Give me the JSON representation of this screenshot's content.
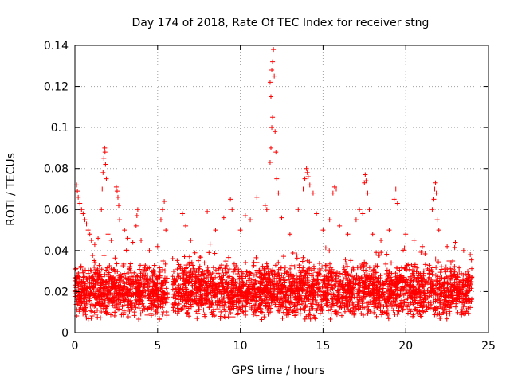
{
  "chart_data": {
    "type": "scatter",
    "title": "Day 174 of 2018, Rate Of TEC Index for receiver stng",
    "xlabel": "GPS time / hours",
    "ylabel": "ROTI / TECUs",
    "xlim": [
      0,
      25
    ],
    "ylim": [
      0,
      0.14
    ],
    "xticks": [
      0,
      5,
      10,
      15,
      20,
      25
    ],
    "yticks": [
      0,
      0.02,
      0.04,
      0.06,
      0.08,
      0.1,
      0.12,
      0.14
    ],
    "xtick_labels": [
      "0",
      "5",
      "10",
      "15",
      "20",
      "25"
    ],
    "ytick_labels": [
      "0",
      "0.02",
      "0.04",
      "0.06",
      "0.08",
      "0.1",
      "0.12",
      "0.14"
    ],
    "grid": true,
    "marker": "+",
    "color": "#ff0000",
    "data_gap_hours": [
      5.6,
      5.9
    ],
    "background_band": {
      "x_range": [
        0,
        24
      ],
      "y_range": [
        0.006,
        0.034
      ],
      "typical": 0.018
    },
    "series": [
      {
        "name": "ROTI",
        "points": [
          [
            0.1,
            0.072
          ],
          [
            0.15,
            0.069
          ],
          [
            0.2,
            0.066
          ],
          [
            0.3,
            0.063
          ],
          [
            0.4,
            0.06
          ],
          [
            0.5,
            0.058
          ],
          [
            0.6,
            0.055
          ],
          [
            0.7,
            0.053
          ],
          [
            0.8,
            0.05
          ],
          [
            0.9,
            0.048
          ],
          [
            1.0,
            0.045
          ],
          [
            1.2,
            0.043
          ],
          [
            1.4,
            0.046
          ],
          [
            1.6,
            0.06
          ],
          [
            1.65,
            0.07
          ],
          [
            1.7,
            0.078
          ],
          [
            1.75,
            0.085
          ],
          [
            1.8,
            0.09
          ],
          [
            1.82,
            0.088
          ],
          [
            1.85,
            0.082
          ],
          [
            1.9,
            0.075
          ],
          [
            2.0,
            0.048
          ],
          [
            2.2,
            0.045
          ],
          [
            2.5,
            0.071
          ],
          [
            2.55,
            0.069
          ],
          [
            2.6,
            0.066
          ],
          [
            2.65,
            0.062
          ],
          [
            2.7,
            0.055
          ],
          [
            3.0,
            0.05
          ],
          [
            3.2,
            0.046
          ],
          [
            3.5,
            0.044
          ],
          [
            3.7,
            0.052
          ],
          [
            3.75,
            0.057
          ],
          [
            3.8,
            0.06
          ],
          [
            4.0,
            0.045
          ],
          [
            4.5,
            0.04
          ],
          [
            5.0,
            0.042
          ],
          [
            5.2,
            0.055
          ],
          [
            5.3,
            0.06
          ],
          [
            5.4,
            0.064
          ],
          [
            5.5,
            0.05
          ],
          [
            6.5,
            0.058
          ],
          [
            6.7,
            0.052
          ],
          [
            7.0,
            0.045
          ],
          [
            8.0,
            0.059
          ],
          [
            8.5,
            0.05
          ],
          [
            9.0,
            0.056
          ],
          [
            9.4,
            0.065
          ],
          [
            9.5,
            0.06
          ],
          [
            10.0,
            0.05
          ],
          [
            10.3,
            0.057
          ],
          [
            10.6,
            0.055
          ],
          [
            11.0,
            0.066
          ],
          [
            11.5,
            0.062
          ],
          [
            11.6,
            0.06
          ],
          [
            11.8,
            0.083
          ],
          [
            11.85,
            0.09
          ],
          [
            11.9,
            0.1
          ],
          [
            11.95,
            0.105
          ],
          [
            11.85,
            0.115
          ],
          [
            11.8,
            0.122
          ],
          [
            11.9,
            0.128
          ],
          [
            11.95,
            0.132
          ],
          [
            12.0,
            0.138
          ],
          [
            12.05,
            0.125
          ],
          [
            12.1,
            0.098
          ],
          [
            12.15,
            0.088
          ],
          [
            12.2,
            0.075
          ],
          [
            12.3,
            0.068
          ],
          [
            12.5,
            0.056
          ],
          [
            13.0,
            0.048
          ],
          [
            13.5,
            0.06
          ],
          [
            13.8,
            0.07
          ],
          [
            13.9,
            0.075
          ],
          [
            14.0,
            0.08
          ],
          [
            14.05,
            0.078
          ],
          [
            14.1,
            0.076
          ],
          [
            14.2,
            0.072
          ],
          [
            14.4,
            0.068
          ],
          [
            14.6,
            0.058
          ],
          [
            15.0,
            0.05
          ],
          [
            15.4,
            0.055
          ],
          [
            15.6,
            0.068
          ],
          [
            15.7,
            0.071
          ],
          [
            15.8,
            0.07
          ],
          [
            16.0,
            0.052
          ],
          [
            16.5,
            0.048
          ],
          [
            17.0,
            0.055
          ],
          [
            17.2,
            0.06
          ],
          [
            17.4,
            0.058
          ],
          [
            17.5,
            0.073
          ],
          [
            17.55,
            0.077
          ],
          [
            17.6,
            0.074
          ],
          [
            17.7,
            0.068
          ],
          [
            17.8,
            0.06
          ],
          [
            18.0,
            0.048
          ],
          [
            18.5,
            0.045
          ],
          [
            19.0,
            0.05
          ],
          [
            19.3,
            0.065
          ],
          [
            19.4,
            0.07
          ],
          [
            19.5,
            0.063
          ],
          [
            20.0,
            0.048
          ],
          [
            20.5,
            0.045
          ],
          [
            21.0,
            0.042
          ],
          [
            21.6,
            0.06
          ],
          [
            21.7,
            0.065
          ],
          [
            21.75,
            0.07
          ],
          [
            21.8,
            0.073
          ],
          [
            21.85,
            0.068
          ],
          [
            21.9,
            0.055
          ],
          [
            22.0,
            0.05
          ],
          [
            22.5,
            0.042
          ],
          [
            23.0,
            0.044
          ],
          [
            23.5,
            0.04
          ],
          [
            23.9,
            0.038
          ]
        ]
      }
    ]
  }
}
